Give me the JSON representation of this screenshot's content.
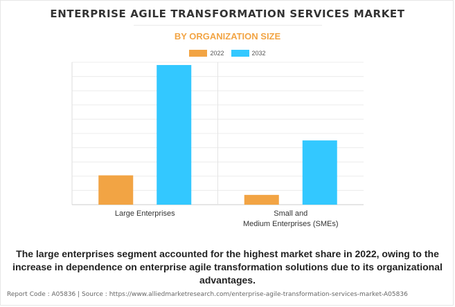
{
  "title": "ENTERPRISE AGILE TRANSFORMATION SERVICES MARKET",
  "subtitle": "BY ORGANIZATION SIZE",
  "colors": {
    "series_2022": "#f2a444",
    "series_2032": "#33c8ff",
    "subtitle": "#f2a444"
  },
  "chart_data": {
    "type": "bar",
    "categories": [
      [
        "Large Enterprises"
      ],
      [
        "Small and",
        "Medium Enterprises (SMEs)"
      ]
    ],
    "series": [
      {
        "name": "2022",
        "values": [
          2.1,
          0.7
        ]
      },
      {
        "name": "2032",
        "values": [
          10.0,
          4.6
        ]
      }
    ],
    "ylim": [
      0,
      10.2
    ],
    "grid": true,
    "legend": "top-center"
  },
  "narrative": "The large enterprises segment accounted for the highest market share in 2022, owing to the increase in dependence on enterprise agile transformation solutions due to its organizational advantages.",
  "footer": "Report Code : A05836  |  Source : https://www.alliedmarketresearch.com/enterprise-agile-transformation-services-market-A05836"
}
